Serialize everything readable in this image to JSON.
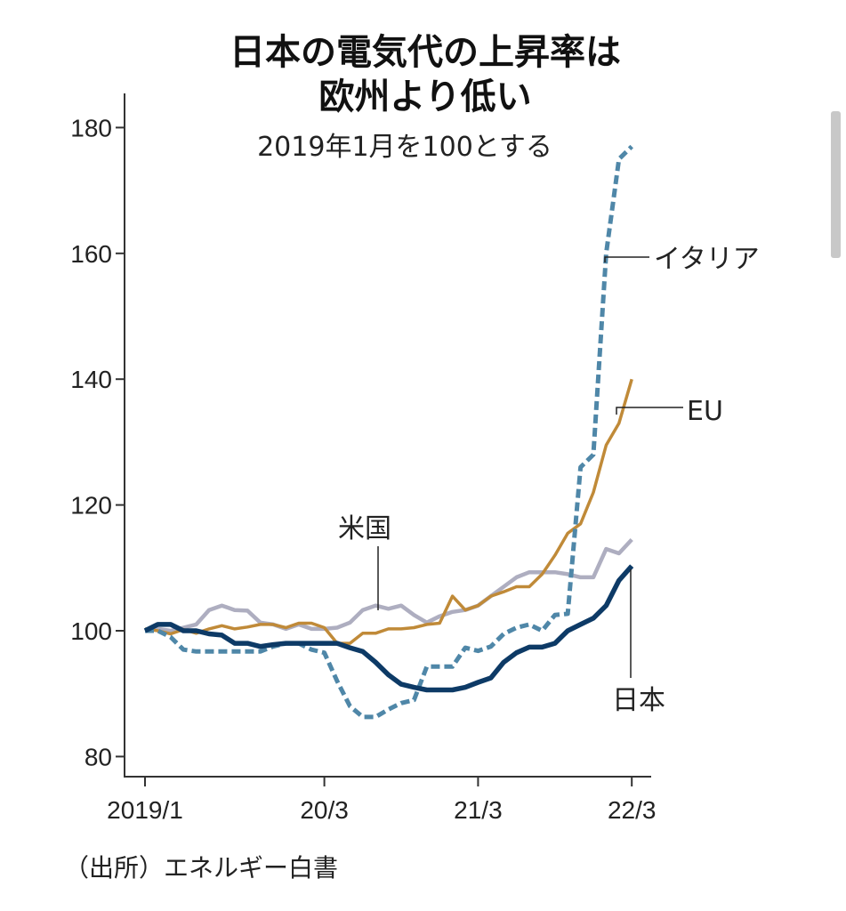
{
  "chart_data": {
    "type": "line",
    "title": "日本の電気代の上昇率は\n欧州より低い",
    "title_lines": [
      "日本の電気代の上昇率は",
      "欧州より低い"
    ],
    "subtitle": "2019年1月を100とする",
    "source": "（出所）エネルギー白書",
    "xlabel": "",
    "ylabel": "",
    "ylim": [
      80,
      185
    ],
    "yticks": [
      80,
      100,
      120,
      140,
      160,
      180
    ],
    "x_range_months": [
      "2019/1",
      "2022/3"
    ],
    "xticks": [
      {
        "label": "2019/1",
        "month_index": 0
      },
      {
        "label": "20/3",
        "month_index": 14
      },
      {
        "label": "21/3",
        "month_index": 26
      },
      {
        "label": "22/3",
        "month_index": 38
      }
    ],
    "grid": false,
    "legend": "direct labels",
    "series": [
      {
        "name": "米国",
        "color": "#aeaec0",
        "style": "solid",
        "values": [
          100,
          100.3,
          100,
          100.5,
          101,
          103.3,
          104,
          103.3,
          103.2,
          101.3,
          101,
          100.3,
          101,
          100.3,
          100.3,
          100.5,
          101.3,
          103.3,
          104,
          103.5,
          104,
          102.5,
          101.3,
          102.3,
          103,
          103.3,
          104,
          105.5,
          107,
          108.5,
          109.3,
          109.3,
          109.3,
          109,
          108.5,
          108.5,
          113,
          112.3,
          114.5
        ]
      },
      {
        "name": "EU",
        "color": "#c08a38",
        "style": "solid",
        "values": [
          100.3,
          100,
          99.5,
          100.2,
          99.6,
          100.3,
          100.8,
          100.3,
          100.6,
          101,
          101,
          100.5,
          101.2,
          101.2,
          100.5,
          98,
          98,
          99.6,
          99.6,
          100.3,
          100.3,
          100.5,
          101,
          101.2,
          105.5,
          103.3,
          104,
          105.5,
          106.2,
          107,
          107,
          109,
          112,
          115.5,
          117,
          122,
          129.5,
          133,
          140
        ]
      },
      {
        "name": "イタリア",
        "color": "#4f87a8",
        "style": "dashed",
        "values": [
          100,
          100,
          99,
          97,
          96.7,
          96.7,
          96.7,
          96.7,
          96.7,
          96.7,
          97.5,
          98,
          98,
          97,
          96.5,
          92,
          88,
          86.3,
          86.3,
          87.5,
          88.5,
          89,
          94.3,
          94.3,
          94.3,
          97.3,
          96.8,
          97.5,
          99.5,
          100.5,
          101,
          100,
          102.5,
          102.7,
          126,
          128,
          160,
          175,
          177
        ]
      },
      {
        "name": "日本",
        "color": "#0d3a66",
        "style": "solid",
        "values": [
          100,
          101,
          101,
          100,
          100,
          99.5,
          99.3,
          98,
          98,
          97.5,
          97.8,
          98,
          98,
          98,
          98,
          98,
          97.3,
          96.7,
          95,
          93,
          91.5,
          91,
          90.6,
          90.6,
          90.6,
          91,
          91.8,
          92.5,
          95,
          96.5,
          97.4,
          97.4,
          98,
          100,
          101,
          102,
          104,
          108,
          110.3
        ]
      }
    ]
  }
}
